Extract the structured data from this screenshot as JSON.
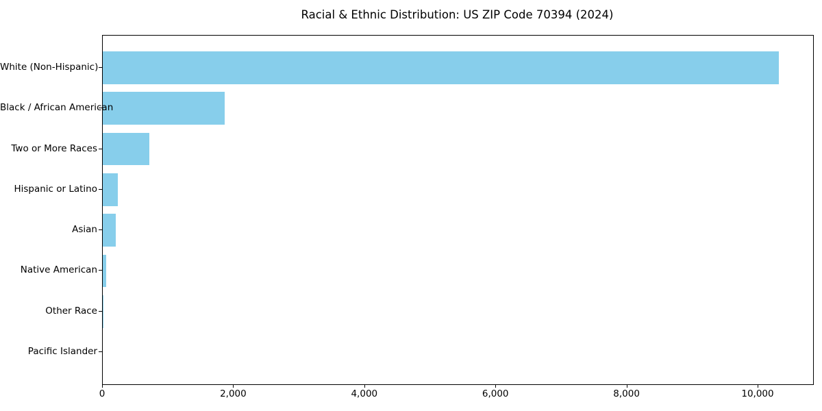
{
  "chart_data": {
    "type": "bar",
    "orientation": "horizontal",
    "title": "Racial & Ethnic Distribution: US ZIP Code 70394 (2024)",
    "categories": [
      "White (Non-Hispanic)",
      "Black / African American",
      "Two or More Races",
      "Hispanic or Latino",
      "Asian",
      "Native American",
      "Other Race",
      "Pacific Islander"
    ],
    "values": [
      10313,
      1857,
      714,
      233,
      202,
      52,
      10,
      0
    ],
    "xlabel": "",
    "ylabel": "",
    "xlim": [
      0,
      10836
    ],
    "xticks": [
      0,
      2000,
      4000,
      6000,
      8000,
      10000
    ],
    "xtick_labels": [
      "0",
      "2,000",
      "4,000",
      "6,000",
      "8,000",
      "10,000"
    ],
    "bar_color": "#87CEEB",
    "bar_height_fraction": 0.8,
    "grid": false,
    "legend": false,
    "plot_border_color": "#000000",
    "background_color": "#ffffff"
  }
}
